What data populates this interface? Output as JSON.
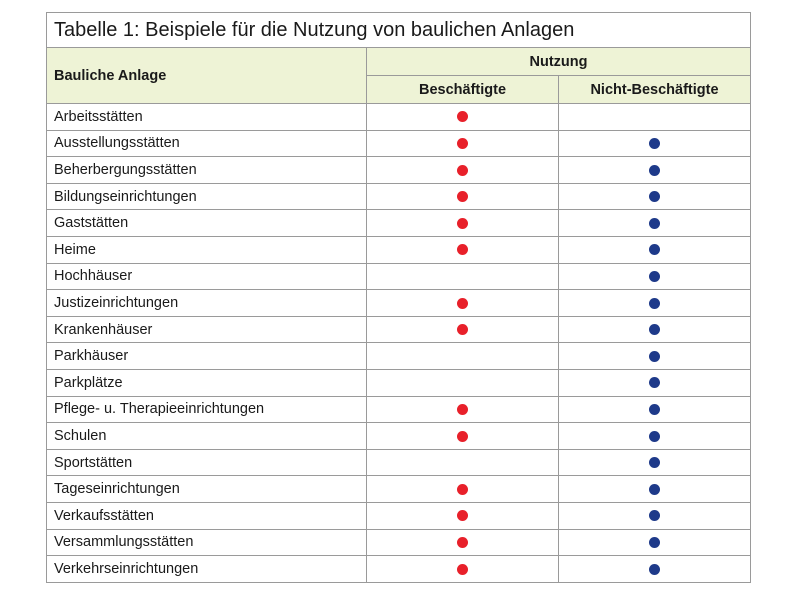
{
  "title": "Tabelle 1: Beispiele für die Nutzung von baulichen Anlagen",
  "header": {
    "col_anlage": "Bauliche Anlage",
    "col_nutzung": "Nutzung",
    "col_beschaeftigte": "Beschäftigte",
    "col_nicht_beschaeftigte": "Nicht-Beschäftigte"
  },
  "colors": {
    "beschaeftigte_dot": "#e8202a",
    "nicht_beschaeftigte_dot": "#1e3a8a",
    "header_bg": "#eef3d6"
  },
  "rows": [
    {
      "name": "Arbeitsstätten",
      "beschaeftigte": true,
      "nicht_beschaeftigte": false
    },
    {
      "name": "Ausstellungsstätten",
      "beschaeftigte": true,
      "nicht_beschaeftigte": true
    },
    {
      "name": "Beherbergungsstätten",
      "beschaeftigte": true,
      "nicht_beschaeftigte": true
    },
    {
      "name": "Bildungseinrichtungen",
      "beschaeftigte": true,
      "nicht_beschaeftigte": true
    },
    {
      "name": "Gaststätten",
      "beschaeftigte": true,
      "nicht_beschaeftigte": true
    },
    {
      "name": "Heime",
      "beschaeftigte": true,
      "nicht_beschaeftigte": true
    },
    {
      "name": "Hochhäuser",
      "beschaeftigte": false,
      "nicht_beschaeftigte": true
    },
    {
      "name": "Justizeinrichtungen",
      "beschaeftigte": true,
      "nicht_beschaeftigte": true
    },
    {
      "name": "Krankenhäuser",
      "beschaeftigte": true,
      "nicht_beschaeftigte": true
    },
    {
      "name": "Parkhäuser",
      "beschaeftigte": false,
      "nicht_beschaeftigte": true
    },
    {
      "name": "Parkplätze",
      "beschaeftigte": false,
      "nicht_beschaeftigte": true
    },
    {
      "name": "Pflege- u. Therapieeinrichtungen",
      "beschaeftigte": true,
      "nicht_beschaeftigte": true
    },
    {
      "name": "Schulen",
      "beschaeftigte": true,
      "nicht_beschaeftigte": true
    },
    {
      "name": "Sportstätten",
      "beschaeftigte": false,
      "nicht_beschaeftigte": true
    },
    {
      "name": "Tageseinrichtungen",
      "beschaeftigte": true,
      "nicht_beschaeftigte": true
    },
    {
      "name": "Verkaufsstätten",
      "beschaeftigte": true,
      "nicht_beschaeftigte": true
    },
    {
      "name": "Versammlungsstätten",
      "beschaeftigte": true,
      "nicht_beschaeftigte": true
    },
    {
      "name": "Verkehrseinrichtungen",
      "beschaeftigte": true,
      "nicht_beschaeftigte": true
    }
  ]
}
